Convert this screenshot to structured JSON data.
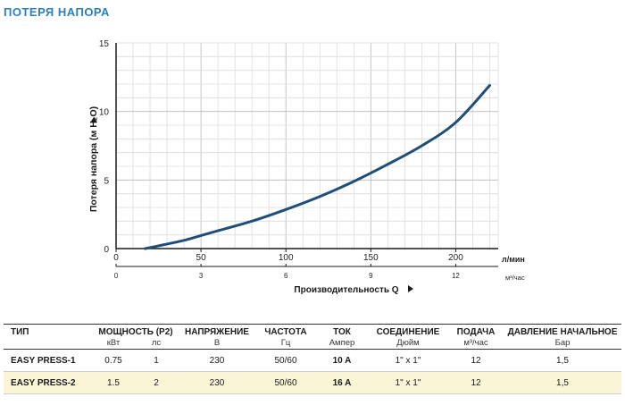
{
  "title": "ПОТЕРЯ НАПОРА",
  "chart_data": {
    "type": "line",
    "ylabel": "Потеря напора  (м H₂O)",
    "y_ticks": [
      "0",
      "5",
      "10",
      "15"
    ],
    "ylim": [
      0,
      15
    ],
    "x_ticks_lmin": [
      "0",
      "50",
      "100",
      "150",
      "200"
    ],
    "x_unit_lmin": "л/мин",
    "x_ticks_m3h": [
      "0",
      "3",
      "6",
      "9",
      "12"
    ],
    "x_unit_m3h": "м³/час",
    "xlim": [
      0,
      225
    ],
    "xlabel": "Производительность Q",
    "grid": true,
    "series": [
      {
        "color": "#1f4e79",
        "x": [
          17,
          25,
          40,
          50,
          60,
          80,
          100,
          120,
          140,
          160,
          180,
          200,
          220
        ],
        "y": [
          0.0,
          0.2,
          0.6,
          0.95,
          1.3,
          2.0,
          2.85,
          3.8,
          4.9,
          6.15,
          7.5,
          9.2,
          11.9
        ]
      }
    ]
  },
  "table": {
    "headers": [
      {
        "title": "ТИП",
        "sub": ""
      },
      {
        "title": "МОЩНОСТЬ (P2)",
        "sub": ""
      },
      {
        "title": "НАПРЯЖЕНИЕ",
        "sub": "В"
      },
      {
        "title": "ЧАСТОТА",
        "sub": "Гц"
      },
      {
        "title": "ТОК",
        "sub": "Ампер"
      },
      {
        "title": "СОЕДИНЕНИЕ",
        "sub": "Дюйм"
      },
      {
        "title": "ПОДАЧА",
        "sub": "м³/час"
      },
      {
        "title": "ДАВЛЕНИЕ НАЧАЛЬНОЕ",
        "sub": "Бар"
      }
    ],
    "power_sub": [
      "кВт",
      "лс"
    ],
    "rows": [
      {
        "type": "EASY PRESS-1",
        "kw": "0.75",
        "hp": "1",
        "voltage": "230",
        "freq": "50/60",
        "current": "10 A",
        "connection": "1\" x 1\"",
        "flow": "12",
        "pressure": "1,5"
      },
      {
        "type": "EASY PRESS-2",
        "kw": "1.5",
        "hp": "2",
        "voltage": "230",
        "freq": "50/60",
        "current": "16 A",
        "connection": "1\" x 1\"",
        "flow": "12",
        "pressure": "1,5"
      }
    ]
  }
}
